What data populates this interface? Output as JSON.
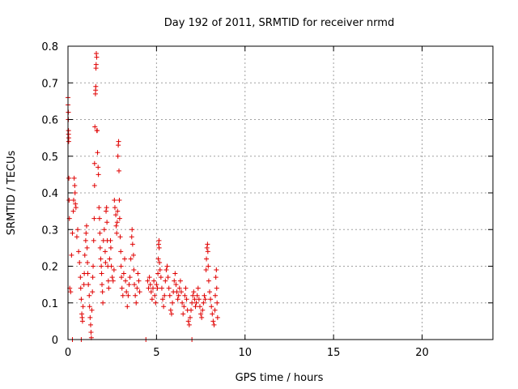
{
  "chart_data": {
    "type": "scatter",
    "title": "Day 192 of 2011, SRMTID for receiver nrmd",
    "xlabel": "GPS time / hours",
    "ylabel": "SRMTID / TECUs",
    "xlim": [
      0,
      24
    ],
    "ylim": [
      0,
      0.8
    ],
    "xticks": [
      0,
      5,
      10,
      15,
      20
    ],
    "xtick_labels": [
      "0",
      "5",
      "10",
      "15",
      "20"
    ],
    "yticks": [
      0,
      0.1,
      0.2,
      0.3,
      0.4,
      0.5,
      0.6,
      0.7,
      0.8
    ],
    "ytick_labels": [
      "0",
      "0.1",
      "0.2",
      "0.3",
      "0.4",
      "0.5",
      "0.6",
      "0.7",
      "0.8"
    ],
    "grid": true,
    "marker": "+",
    "marker_color": "#e00000",
    "series": [
      {
        "name": "SRMTID",
        "points": [
          [
            0.0,
            0.66
          ],
          [
            0.0,
            0.64
          ],
          [
            0.02,
            0.62
          ],
          [
            0.02,
            0.6
          ],
          [
            0.03,
            0.57
          ],
          [
            0.03,
            0.56
          ],
          [
            0.04,
            0.55
          ],
          [
            0.04,
            0.54
          ],
          [
            0.05,
            0.44
          ],
          [
            0.06,
            0.38
          ],
          [
            0.08,
            0.33
          ],
          [
            0.1,
            0.14
          ],
          [
            0.15,
            0.13
          ],
          [
            0.2,
            0.23
          ],
          [
            0.25,
            0.29
          ],
          [
            0.3,
            0.35
          ],
          [
            0.32,
            0.38
          ],
          [
            0.35,
            0.44
          ],
          [
            0.38,
            0.42
          ],
          [
            0.4,
            0.4
          ],
          [
            0.42,
            0.37
          ],
          [
            0.45,
            0.36
          ],
          [
            0.5,
            0.28
          ],
          [
            0.55,
            0.3
          ],
          [
            0.6,
            0.24
          ],
          [
            0.65,
            0.21
          ],
          [
            0.7,
            0.17
          ],
          [
            0.72,
            0.14
          ],
          [
            0.75,
            0.11
          ],
          [
            0.78,
            0.07
          ],
          [
            0.8,
            0.06
          ],
          [
            0.82,
            0.05
          ],
          [
            0.85,
            0.09
          ],
          [
            0.9,
            0.15
          ],
          [
            0.92,
            0.18
          ],
          [
            0.95,
            0.23
          ],
          [
            1.0,
            0.27
          ],
          [
            1.02,
            0.29
          ],
          [
            1.05,
            0.31
          ],
          [
            1.08,
            0.25
          ],
          [
            1.1,
            0.21
          ],
          [
            1.12,
            0.18
          ],
          [
            1.15,
            0.15
          ],
          [
            1.2,
            0.12
          ],
          [
            1.22,
            0.09
          ],
          [
            1.25,
            0.06
          ],
          [
            1.28,
            0.04
          ],
          [
            1.3,
            0.02
          ],
          [
            1.32,
            0.005
          ],
          [
            1.35,
            0.08
          ],
          [
            1.38,
            0.13
          ],
          [
            1.4,
            0.17
          ],
          [
            1.42,
            0.2
          ],
          [
            1.45,
            0.27
          ],
          [
            1.48,
            0.33
          ],
          [
            1.5,
            0.42
          ],
          [
            1.5,
            0.48
          ],
          [
            1.52,
            0.58
          ],
          [
            1.55,
            0.67
          ],
          [
            1.56,
            0.68
          ],
          [
            1.57,
            0.69
          ],
          [
            1.58,
            0.74
          ],
          [
            1.59,
            0.75
          ],
          [
            1.6,
            0.78
          ],
          [
            1.62,
            0.77
          ],
          [
            1.63,
            0.57
          ],
          [
            1.65,
            0.57
          ],
          [
            1.67,
            0.51
          ],
          [
            1.7,
            0.47
          ],
          [
            1.72,
            0.45
          ],
          [
            1.75,
            0.36
          ],
          [
            1.78,
            0.33
          ],
          [
            1.8,
            0.29
          ],
          [
            1.82,
            0.25
          ],
          [
            1.85,
            0.22
          ],
          [
            1.88,
            0.2
          ],
          [
            1.9,
            0.18
          ],
          [
            1.92,
            0.15
          ],
          [
            1.95,
            0.13
          ],
          [
            1.97,
            0.1
          ],
          [
            2.0,
            0.27
          ],
          [
            2.05,
            0.3
          ],
          [
            2.1,
            0.24
          ],
          [
            2.12,
            0.21
          ],
          [
            2.15,
            0.35
          ],
          [
            2.18,
            0.36
          ],
          [
            2.2,
            0.32
          ],
          [
            2.22,
            0.27
          ],
          [
            2.25,
            0.2
          ],
          [
            2.28,
            0.16
          ],
          [
            2.3,
            0.14
          ],
          [
            2.35,
            0.22
          ],
          [
            2.4,
            0.27
          ],
          [
            2.42,
            0.25
          ],
          [
            2.45,
            0.2
          ],
          [
            2.5,
            0.17
          ],
          [
            2.55,
            0.16
          ],
          [
            2.6,
            0.19
          ],
          [
            2.62,
            0.38
          ],
          [
            2.65,
            0.36
          ],
          [
            2.7,
            0.34
          ],
          [
            2.72,
            0.31
          ],
          [
            2.75,
            0.29
          ],
          [
            2.78,
            0.32
          ],
          [
            2.8,
            0.35
          ],
          [
            2.82,
            0.5
          ],
          [
            2.84,
            0.53
          ],
          [
            2.86,
            0.54
          ],
          [
            2.88,
            0.46
          ],
          [
            2.9,
            0.38
          ],
          [
            2.92,
            0.33
          ],
          [
            2.95,
            0.28
          ],
          [
            2.98,
            0.24
          ],
          [
            3.0,
            0.2
          ],
          [
            3.02,
            0.17
          ],
          [
            3.05,
            0.14
          ],
          [
            3.1,
            0.12
          ],
          [
            3.15,
            0.18
          ],
          [
            3.2,
            0.22
          ],
          [
            3.25,
            0.16
          ],
          [
            3.3,
            0.13
          ],
          [
            3.35,
            0.09
          ],
          [
            3.4,
            0.12
          ],
          [
            3.45,
            0.15
          ],
          [
            3.5,
            0.17
          ],
          [
            3.55,
            0.22
          ],
          [
            3.6,
            0.28
          ],
          [
            3.62,
            0.3
          ],
          [
            3.65,
            0.26
          ],
          [
            3.7,
            0.23
          ],
          [
            3.72,
            0.19
          ],
          [
            3.75,
            0.15
          ],
          [
            3.8,
            0.12
          ],
          [
            3.85,
            0.1
          ],
          [
            3.9,
            0.14
          ],
          [
            3.95,
            0.18
          ],
          [
            4.0,
            0.16
          ],
          [
            4.05,
            0.13
          ],
          [
            4.5,
            0.16
          ],
          [
            4.55,
            0.14
          ],
          [
            4.6,
            0.17
          ],
          [
            4.65,
            0.15
          ],
          [
            4.7,
            0.13
          ],
          [
            4.75,
            0.11
          ],
          [
            4.8,
            0.14
          ],
          [
            4.85,
            0.16
          ],
          [
            4.9,
            0.12
          ],
          [
            4.95,
            0.1
          ],
          [
            5.0,
            0.15
          ],
          [
            5.05,
            0.14
          ],
          [
            5.08,
            0.18
          ],
          [
            5.1,
            0.22
          ],
          [
            5.12,
            0.26
          ],
          [
            5.14,
            0.27
          ],
          [
            5.15,
            0.25
          ],
          [
            5.17,
            0.21
          ],
          [
            5.2,
            0.19
          ],
          [
            5.25,
            0.17
          ],
          [
            5.3,
            0.14
          ],
          [
            5.35,
            0.11
          ],
          [
            5.4,
            0.09
          ],
          [
            5.45,
            0.12
          ],
          [
            5.5,
            0.16
          ],
          [
            5.55,
            0.19
          ],
          [
            5.6,
            0.2
          ],
          [
            5.65,
            0.17
          ],
          [
            5.7,
            0.14
          ],
          [
            5.75,
            0.12
          ],
          [
            5.8,
            0.08
          ],
          [
            5.85,
            0.07
          ],
          [
            5.9,
            0.1
          ],
          [
            5.95,
            0.13
          ],
          [
            6.0,
            0.16
          ],
          [
            6.05,
            0.18
          ],
          [
            6.1,
            0.15
          ],
          [
            6.15,
            0.13
          ],
          [
            6.2,
            0.11
          ],
          [
            6.25,
            0.12
          ],
          [
            6.3,
            0.14
          ],
          [
            6.35,
            0.16
          ],
          [
            6.4,
            0.13
          ],
          [
            6.45,
            0.1
          ],
          [
            6.5,
            0.07
          ],
          [
            6.55,
            0.09
          ],
          [
            6.6,
            0.12
          ],
          [
            6.65,
            0.14
          ],
          [
            6.7,
            0.11
          ],
          [
            6.75,
            0.08
          ],
          [
            6.8,
            0.05
          ],
          [
            6.85,
            0.04
          ],
          [
            6.9,
            0.06
          ],
          [
            6.95,
            0.08
          ],
          [
            7.0,
            0.1
          ],
          [
            7.05,
            0.12
          ],
          [
            7.1,
            0.13
          ],
          [
            7.15,
            0.11
          ],
          [
            7.2,
            0.09
          ],
          [
            7.25,
            0.1
          ],
          [
            7.3,
            0.12
          ],
          [
            7.35,
            0.14
          ],
          [
            7.4,
            0.11
          ],
          [
            7.45,
            0.09
          ],
          [
            7.5,
            0.07
          ],
          [
            7.55,
            0.06
          ],
          [
            7.6,
            0.08
          ],
          [
            7.65,
            0.1
          ],
          [
            7.7,
            0.12
          ],
          [
            7.75,
            0.11
          ],
          [
            7.8,
            0.19
          ],
          [
            7.82,
            0.22
          ],
          [
            7.85,
            0.25
          ],
          [
            7.88,
            0.26
          ],
          [
            7.9,
            0.24
          ],
          [
            7.92,
            0.2
          ],
          [
            7.95,
            0.16
          ],
          [
            8.0,
            0.13
          ],
          [
            8.05,
            0.11
          ],
          [
            8.1,
            0.09
          ],
          [
            8.15,
            0.07
          ],
          [
            8.2,
            0.05
          ],
          [
            8.25,
            0.04
          ],
          [
            8.3,
            0.08
          ],
          [
            8.32,
            0.12
          ],
          [
            8.35,
            0.17
          ],
          [
            8.38,
            0.19
          ],
          [
            8.4,
            0.14
          ],
          [
            8.42,
            0.1
          ],
          [
            8.45,
            0.06
          ],
          [
            0.25,
            0.0
          ],
          [
            0.75,
            0.0
          ],
          [
            4.4,
            0.0
          ],
          [
            7.0,
            0.0
          ]
        ]
      }
    ]
  }
}
